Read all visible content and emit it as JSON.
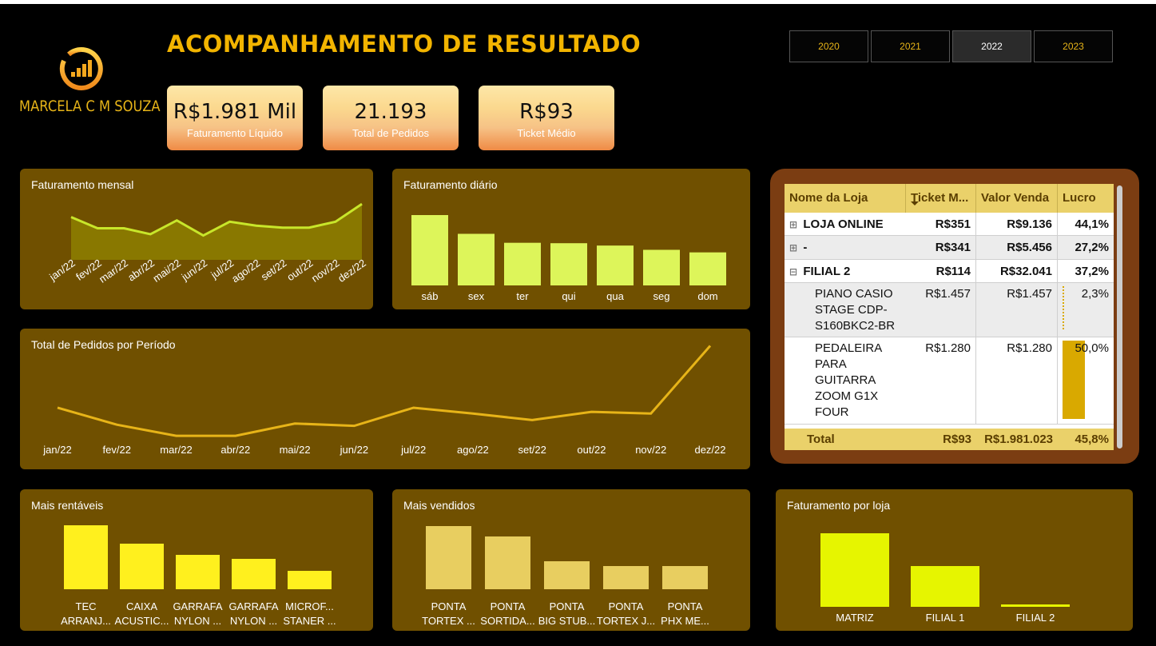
{
  "header": {
    "title": "ACOMPANHAMENTO  DE RESULTADO",
    "brand": "MARCELA C M SOUZA",
    "brand_color": "#e7b418"
  },
  "years": {
    "options": [
      "2020",
      "2021",
      "2022",
      "2023"
    ],
    "selected": "2022"
  },
  "kpis": [
    {
      "value": "R$1.981 Mil",
      "label": "Faturamento Líquido"
    },
    {
      "value": "21.193",
      "label": "Total de Pedidos"
    },
    {
      "value": "R$93",
      "label": "Ticket Médio"
    }
  ],
  "chart_data": [
    {
      "type": "area",
      "title": "Faturamento mensal",
      "categories": [
        "jan/22",
        "fev/22",
        "mar/22",
        "abr/22",
        "mai/22",
        "jun/22",
        "jul/22",
        "ago/22",
        "set/22",
        "out/22",
        "nov/22",
        "dez/22"
      ],
      "values": [
        165,
        148,
        148,
        139,
        160,
        137,
        158,
        152,
        149,
        149,
        158,
        185
      ],
      "ylim": [
        100,
        190
      ],
      "color": "#c8e62a"
    },
    {
      "type": "bar",
      "title": "Faturamento diário",
      "categories": [
        "sáb",
        "sex",
        "ter",
        "qui",
        "qua",
        "seg",
        "dom"
      ],
      "values": [
        330,
        242,
        200,
        198,
        187,
        167,
        155
      ],
      "ylim": [
        0,
        340
      ],
      "color": "#ddf55a"
    },
    {
      "type": "line",
      "title": "Total de Pedidos por Período",
      "categories": [
        "jan/22",
        "fev/22",
        "mar/22",
        "abr/22",
        "mai/22",
        "jun/22",
        "jul/22",
        "ago/22",
        "set/22",
        "out/22",
        "nov/22",
        "dez/22"
      ],
      "values": [
        1820,
        1530,
        1340,
        1340,
        1550,
        1510,
        1820,
        1720,
        1610,
        1750,
        1720,
        2880
      ],
      "ylim": [
        1300,
        2900
      ],
      "color": "#e7b418"
    },
    {
      "type": "bar",
      "title": "Mais rentáveis",
      "categories": [
        [
          "TEC",
          "ARRANJ..."
        ],
        [
          "CAIXA",
          "ACUSTIC..."
        ],
        [
          "GARRAFA",
          "NYLON ..."
        ],
        [
          "GARRAFA",
          "NYLON ..."
        ],
        [
          "MICROF...",
          "STANER ..."
        ]
      ],
      "values": [
        80,
        57,
        43,
        38,
        23
      ],
      "ylim": [
        0,
        80
      ],
      "color": "#fff01e"
    },
    {
      "type": "bar",
      "title": "Mais vendidos",
      "categories": [
        [
          "PONTA",
          "TORTEX ..."
        ],
        [
          "PONTA",
          "SORTIDA..."
        ],
        [
          "PONTA",
          "BIG STUB..."
        ],
        [
          "PONTA",
          "TORTEX J..."
        ],
        [
          "PONTA",
          "PHX ME..."
        ]
      ],
      "values": [
        79,
        66,
        35,
        29,
        29
      ],
      "ylim": [
        0,
        79
      ],
      "color": "#e8ce60"
    },
    {
      "type": "bar",
      "title": "Faturamento por loja",
      "categories": [
        [
          "MATRIZ"
        ],
        [
          "FILIAL 1"
        ],
        [
          "FILIAL 2"
        ]
      ],
      "values": [
        92,
        51,
        3
      ],
      "ylim": [
        0,
        92
      ],
      "color": "#e6f500"
    }
  ],
  "table": {
    "headers": [
      "Nome da Loja",
      "Ticket M...",
      "Valor Venda",
      "Lucro %"
    ],
    "rows": [
      {
        "expander": "⊞",
        "name": "LOJA ONLINE",
        "ticket": "R$351",
        "valor": "R$9.136",
        "lucro": "44,1%",
        "bold": true
      },
      {
        "expander": "⊞",
        "name": "-",
        "ticket": "R$341",
        "valor": "R$5.456",
        "lucro": "27,2%",
        "bold": true
      },
      {
        "expander": "⊟",
        "name": "FILIAL 2",
        "ticket": "R$114",
        "valor": "R$32.041",
        "lucro": "37,2%",
        "bold": true
      },
      {
        "name_lines": [
          "PIANO CASIO",
          "STAGE CDP-",
          "S160BKC2-BR"
        ],
        "ticket": "R$1.457",
        "valor": "R$1.457",
        "lucro": "2,3%",
        "lucro_pct": 2.3
      },
      {
        "name_lines": [
          "PEDALEIRA",
          "PARA",
          "GUITARRA",
          "ZOOM G1X",
          "FOUR"
        ],
        "ticket": "R$1.280",
        "valor": "R$1.280",
        "lucro": "50,0%",
        "lucro_pct": 50.0
      }
    ],
    "total": {
      "label": "Total",
      "ticket": "R$93",
      "valor": "R$1.981.023",
      "lucro": "45,8%"
    }
  }
}
